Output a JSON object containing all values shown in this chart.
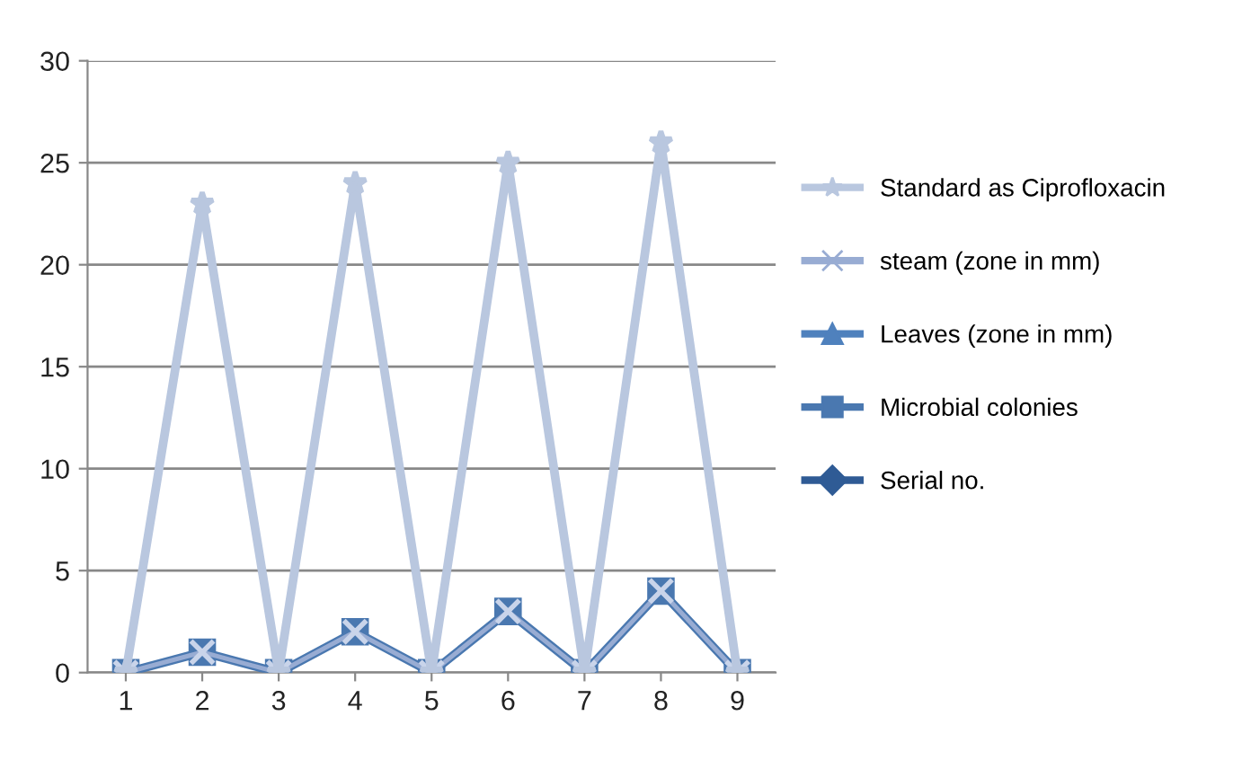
{
  "chart_data": {
    "type": "line",
    "categories": [
      "1",
      "2",
      "3",
      "4",
      "5",
      "6",
      "7",
      "8",
      "9"
    ],
    "ylim": [
      0,
      30
    ],
    "yticks": [
      0,
      5,
      10,
      15,
      20,
      25,
      30
    ],
    "grid": "y",
    "legend": "right",
    "series": [
      {
        "name": "Standard as Ciprofloxacin",
        "color": "#b9c7df",
        "marker": "star",
        "values": [
          0,
          23,
          0,
          24,
          0,
          25,
          0,
          26,
          0
        ]
      },
      {
        "name": "steam (zone in mm)",
        "color": "#98acd3",
        "marker": "cross",
        "values": [
          0,
          1,
          0,
          2,
          0,
          3,
          0,
          4,
          0
        ]
      },
      {
        "name": "Leaves (zone in mm)",
        "color": "#4f81bd",
        "marker": "triangle",
        "values": [
          null,
          null,
          null,
          null,
          null,
          null,
          null,
          null,
          null
        ]
      },
      {
        "name": "Microbial colonies",
        "color": "#4a78b0",
        "marker": "square",
        "values": [
          0,
          1,
          0,
          2,
          0,
          3,
          0,
          4,
          0
        ]
      },
      {
        "name": "Serial no.",
        "color": "#2f5b95",
        "marker": "diamond",
        "values": [
          null,
          null,
          null,
          null,
          null,
          null,
          null,
          null,
          null
        ]
      }
    ]
  }
}
